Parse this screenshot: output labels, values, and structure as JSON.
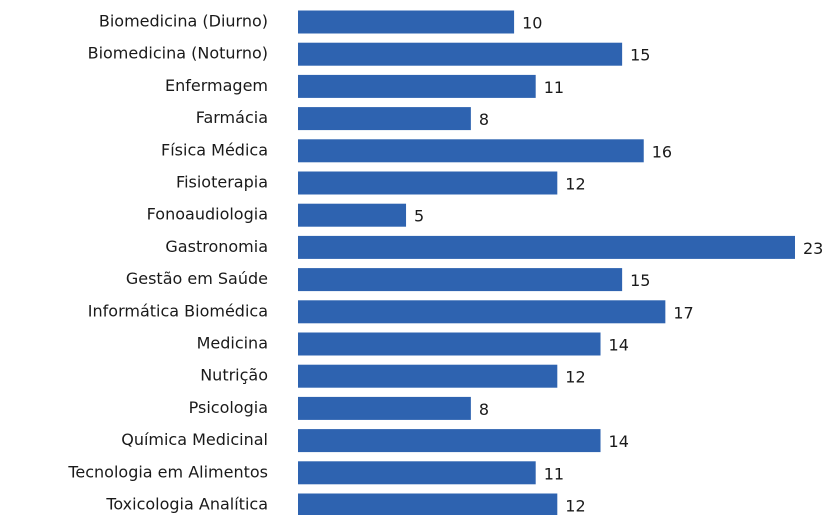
{
  "chart_data": {
    "type": "bar",
    "orientation": "horizontal",
    "categories": [
      "Biomedicina (Diurno)",
      "Biomedicina (Noturno)",
      "Enfermagem",
      "Farmácia",
      "Física Médica",
      "Fisioterapia",
      "Fonoaudiologia",
      "Gastronomia",
      "Gestão em Saúde",
      "Informática Biomédica",
      "Medicina",
      "Nutrição",
      "Psicologia",
      "Química Medicinal",
      "Tecnologia em Alimentos",
      "Toxicologia Analítica"
    ],
    "values": [
      10,
      15,
      11,
      8,
      16,
      12,
      5,
      23,
      15,
      17,
      14,
      12,
      8,
      14,
      11,
      12
    ],
    "color": "#2e63b0"
  }
}
